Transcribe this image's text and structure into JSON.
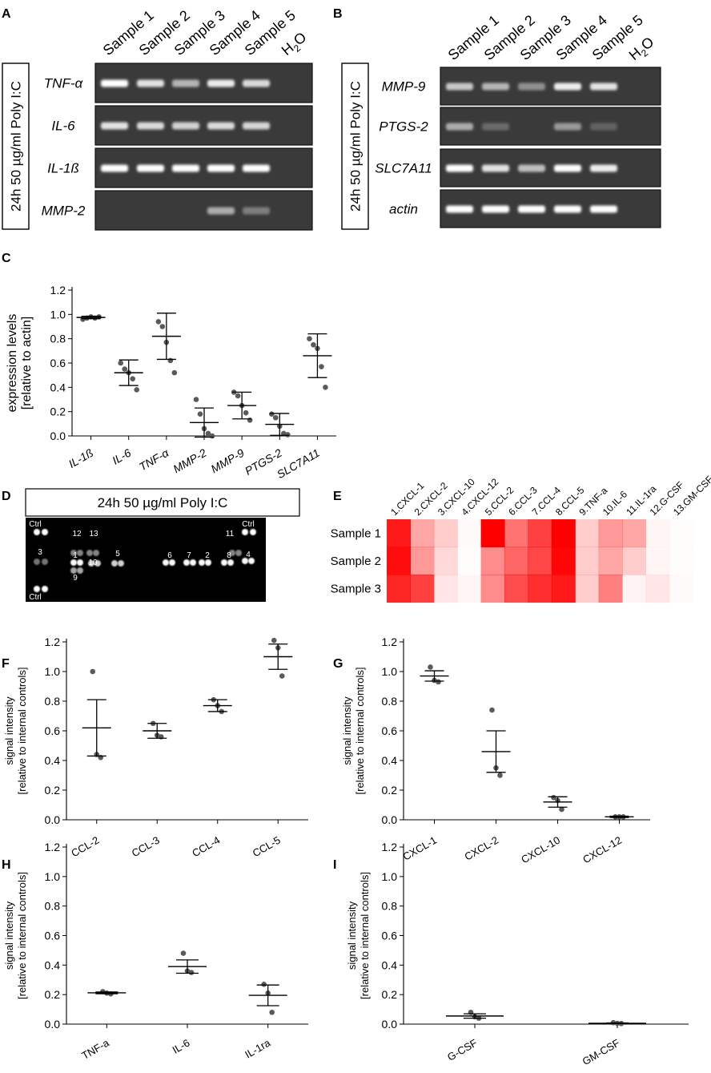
{
  "panels": {
    "A": "A",
    "B": "B",
    "C": "C",
    "D": "D",
    "E": "E",
    "F": "F",
    "G": "G",
    "H": "H",
    "I": "I"
  },
  "gels": {
    "treatment_label": "24h 50 µg/ml Poly I:C",
    "lane_labels": [
      "Sample 1",
      "Sample 2",
      "Sample 3",
      "Sample 4",
      "Sample 5"
    ],
    "water_label": {
      "main": "H",
      "sub": "2",
      "tail": "O"
    },
    "panel_A": [
      {
        "gene": "TNF-α",
        "bands": [
          1.0,
          0.85,
          0.6,
          0.9,
          0.8,
          0
        ]
      },
      {
        "gene": "IL-6",
        "bands": [
          0.85,
          0.8,
          0.75,
          0.8,
          0.78,
          0
        ]
      },
      {
        "gene": "IL-1ß",
        "bands": [
          1.0,
          1.0,
          1.0,
          1.0,
          1.0,
          0
        ]
      },
      {
        "gene": "MMP-2",
        "bands": [
          0,
          0,
          0,
          0.55,
          0.3,
          0
        ]
      }
    ],
    "panel_B": [
      {
        "gene": "MMP-9",
        "bands": [
          0.7,
          0.6,
          0.4,
          0.9,
          0.85,
          0
        ]
      },
      {
        "gene": "PTGS-2",
        "bands": [
          0.55,
          0.2,
          0,
          0.45,
          0.15,
          0
        ]
      },
      {
        "gene": "SLC7A11",
        "bands": [
          1.0,
          0.85,
          0.65,
          1.0,
          0.9,
          0
        ]
      },
      {
        "gene": "actin",
        "bands": [
          1.0,
          1.0,
          1.0,
          1.0,
          1.0,
          0
        ]
      }
    ]
  },
  "array": {
    "title": "24h 50 µg/ml Poly I:C",
    "labels": [
      "Ctrl",
      "Ctrl",
      "Ctrl",
      "12",
      "13",
      "11",
      "3",
      "1",
      "10",
      "5",
      "6",
      "7",
      "2",
      "8",
      "4",
      "9"
    ]
  },
  "heatmap": {
    "columns": [
      "1.CXCL-1",
      "2.CXCL-2",
      "3.CXCL-10",
      "4.CXCL-12",
      "5.CCL-2",
      "6.CCL-3",
      "7.CCL-4",
      "8.CCL-5",
      "9.TNF-a",
      "10.IL-6",
      "11.IL-1ra",
      "12.G-CSF",
      "13.GM-CSF"
    ],
    "rows": [
      "Sample 1",
      "Sample 2",
      "Sample 3"
    ],
    "values": [
      [
        0.9,
        0.35,
        0.2,
        0.02,
        1.0,
        0.55,
        0.75,
        1.0,
        0.2,
        0.4,
        0.35,
        0.04,
        0.01
      ],
      [
        0.95,
        0.4,
        0.15,
        0.01,
        0.45,
        0.6,
        0.72,
        0.98,
        0.2,
        0.35,
        0.2,
        0.04,
        0.01
      ],
      [
        0.85,
        0.75,
        0.1,
        0.04,
        0.45,
        0.7,
        0.82,
        0.9,
        0.2,
        0.5,
        0.05,
        0.1,
        0.02
      ]
    ],
    "color": "#ff0000"
  },
  "chart_data": [
    {
      "panel": "C",
      "type": "scatter",
      "ylabel_line1": "expression levels",
      "ylabel_line2": "[relative to actin]",
      "ylim": [
        0,
        1.2
      ],
      "yticks": [
        "0.0",
        "0.2",
        "0.4",
        "0.6",
        "0.8",
        "1.0",
        "1.2"
      ],
      "categories": [
        "IL-1ß",
        "IL-6",
        "TNF-α",
        "MMP-2",
        "MMP-9",
        "PTGS-2",
        "SLC7A11"
      ],
      "italic": true,
      "points": [
        [
          0.96,
          0.97,
          0.98,
          0.97,
          0.98
        ],
        [
          0.6,
          0.55,
          0.52,
          0.47,
          0.38
        ],
        [
          0.94,
          0.9,
          0.77,
          0.62,
          0.52
        ],
        [
          0.3,
          0.18,
          0.06,
          0.02,
          0.0
        ],
        [
          0.36,
          0.33,
          0.25,
          0.19,
          0.13
        ],
        [
          0.18,
          0.15,
          0.08,
          0.02,
          0.01
        ],
        [
          0.8,
          0.75,
          0.72,
          0.57,
          0.4
        ]
      ],
      "means": [
        0.975,
        0.52,
        0.82,
        0.11,
        0.25,
        0.095,
        0.66
      ],
      "err": [
        0.01,
        0.105,
        0.19,
        0.12,
        0.11,
        0.09,
        0.18
      ]
    },
    {
      "panel": "F",
      "type": "scatter",
      "ylabel_line1": "signal intensity",
      "ylabel_line2": "[relative to internal controls]",
      "ylim": [
        0,
        1.2
      ],
      "yticks": [
        "0.0",
        "0.2",
        "0.4",
        "0.6",
        "0.8",
        "1.0",
        "1.2"
      ],
      "categories": [
        "CCL-2",
        "CCL-3",
        "CCL-4",
        "CCL-5"
      ],
      "points": [
        [
          1.0,
          0.44,
          0.42
        ],
        [
          0.65,
          0.57,
          0.56
        ],
        [
          0.81,
          0.77,
          0.73
        ],
        [
          1.21,
          1.16,
          0.97
        ]
      ],
      "means": [
        0.62,
        0.6,
        0.77,
        1.1
      ],
      "err": [
        0.19,
        0.05,
        0.04,
        0.085
      ]
    },
    {
      "panel": "G",
      "type": "scatter",
      "ylabel_line1": "signal intensity",
      "ylabel_line2": "[relative to internal controls]",
      "ylim": [
        0,
        1.2
      ],
      "yticks": [
        "0.0",
        "0.2",
        "0.4",
        "0.6",
        "0.8",
        "1.0",
        "1.2"
      ],
      "categories": [
        "CXCL-1",
        "CXCL-2",
        "CXCL-10",
        "CXCL-12"
      ],
      "points": [
        [
          1.03,
          0.94,
          0.93
        ],
        [
          0.74,
          0.35,
          0.3
        ],
        [
          0.15,
          0.13,
          0.07
        ],
        [
          0.02,
          0.02,
          0.02
        ]
      ],
      "means": [
        0.97,
        0.46,
        0.12,
        0.02
      ],
      "err": [
        0.035,
        0.14,
        0.035,
        0.004
      ]
    },
    {
      "panel": "H",
      "type": "scatter",
      "ylabel_line1": "signal intensity",
      "ylabel_line2": "[relative to internal controls]",
      "ylim": [
        0,
        1.2
      ],
      "yticks": [
        "0.0",
        "0.2",
        "0.4",
        "0.6",
        "0.8",
        "1.0",
        "1.2"
      ],
      "categories": [
        "TNF-a",
        "IL-6",
        "IL-1ra"
      ],
      "points": [
        [
          0.22,
          0.21,
          0.205
        ],
        [
          0.48,
          0.36,
          0.35
        ],
        [
          0.27,
          0.21,
          0.08
        ]
      ],
      "means": [
        0.212,
        0.39,
        0.195
      ],
      "err": [
        0.006,
        0.045,
        0.07
      ]
    },
    {
      "panel": "I",
      "type": "scatter",
      "ylabel_line1": "signal intensity",
      "ylabel_line2": "[relative to internal controls]",
      "ylim": [
        0,
        1.2
      ],
      "yticks": [
        "0.0",
        "0.2",
        "0.4",
        "0.6",
        "0.8",
        "1.0",
        "1.2"
      ],
      "categories": [
        "G-CSF",
        "GM-CSF"
      ],
      "points": [
        [
          0.08,
          0.05,
          0.04
        ],
        [
          0.01,
          0.005,
          0.004
        ]
      ],
      "means": [
        0.055,
        0.006
      ],
      "err": [
        0.015,
        0.002
      ]
    }
  ]
}
